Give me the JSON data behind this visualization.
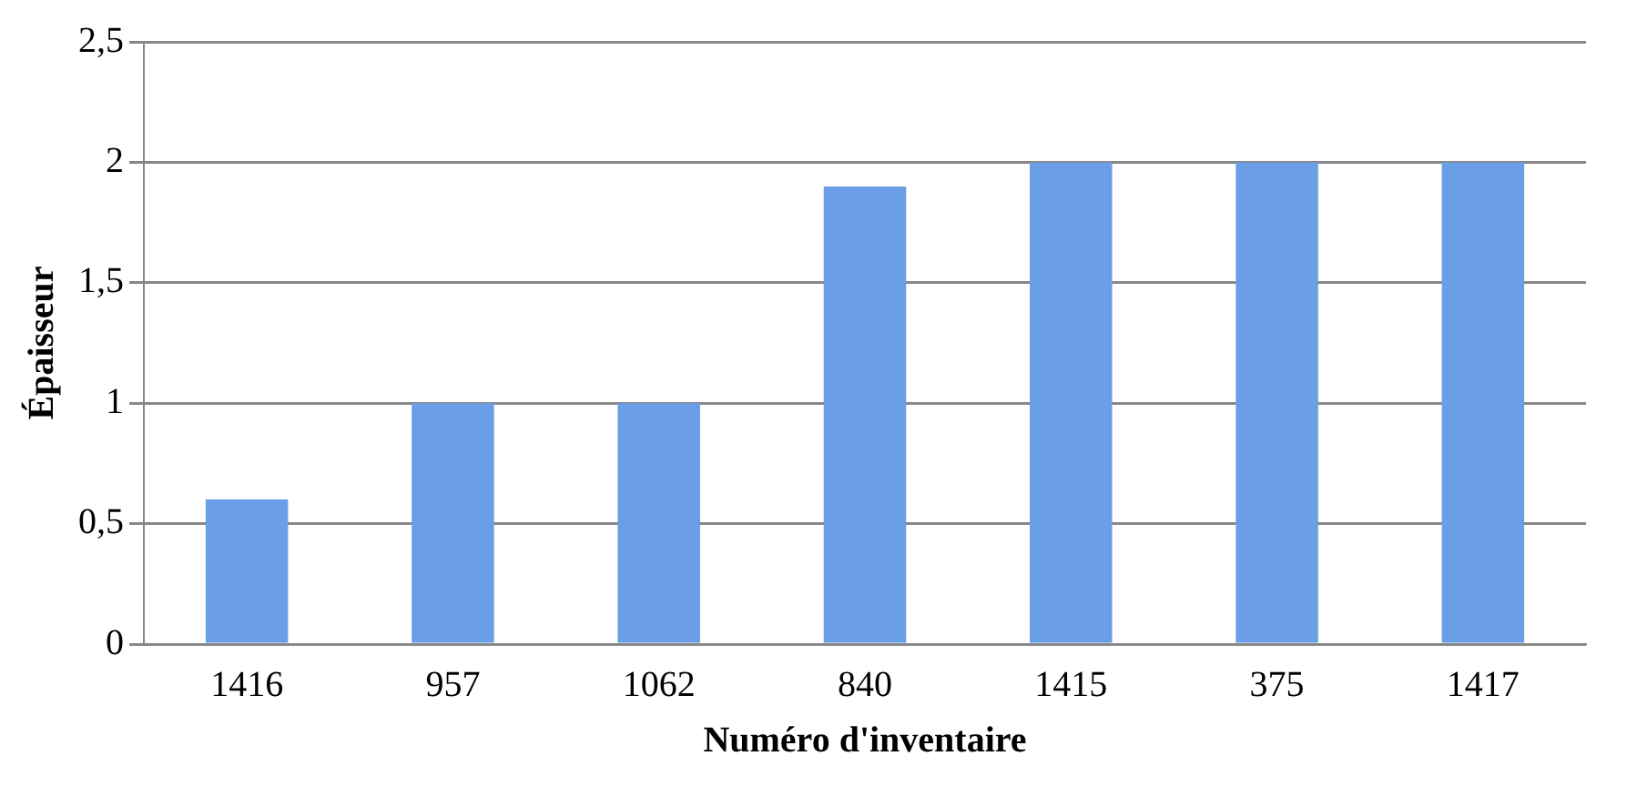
{
  "chart_data": {
    "type": "bar",
    "xlabel": "Numéro d'inventaire",
    "ylabel": "Épaisseur",
    "categories": [
      "1416",
      "957",
      "1062",
      "840",
      "1415",
      "375",
      "1417"
    ],
    "values": [
      0.6,
      1,
      1,
      1.9,
      2,
      2,
      2
    ],
    "color": "#6a9fe6",
    "ylim": [
      0,
      2.5
    ],
    "yticks": [
      0,
      {
        "value": 0.5,
        "label": "0,5"
      },
      1,
      {
        "value": 1.5,
        "label": "1,5"
      },
      2,
      {
        "value": 2.5,
        "label": "2,5"
      }
    ],
    "grid": "y",
    "legend": false
  }
}
